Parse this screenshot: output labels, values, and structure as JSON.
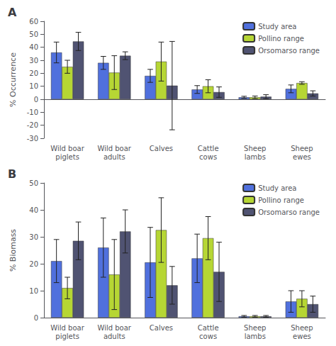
{
  "chart_data": [
    {
      "type": "bar",
      "title": "A",
      "ylabel": "% Occurrence",
      "categories": [
        "Wild boar\npiglets",
        "Wild boar\nadults",
        "Calves",
        "Cattle\ncows",
        "Sheep\nlambs",
        "Sheep\newes"
      ],
      "series": [
        {
          "name": "Study area",
          "values": [
            36,
            28,
            18,
            7.5,
            1.5,
            8
          ],
          "errors": [
            8,
            5,
            5,
            3,
            0.8,
            3
          ]
        },
        {
          "name": "Pollino range",
          "values": [
            25,
            20.5,
            29,
            10,
            1.5,
            12.5
          ],
          "errors": [
            5,
            13,
            15,
            5,
            1,
            1
          ]
        },
        {
          "name": "Orsomarso range",
          "values": [
            44.5,
            33.5,
            10.5,
            5.5,
            2,
            4.5
          ],
          "errors": [
            7,
            3,
            34,
            4,
            1.5,
            2
          ]
        }
      ],
      "ylim": [
        -30,
        60
      ],
      "yticks": [
        -30,
        -20,
        -10,
        0,
        10,
        20,
        30,
        40,
        50,
        60
      ],
      "grid": false,
      "legend": "upper right"
    },
    {
      "type": "bar",
      "title": "B",
      "ylabel": "% Biomass",
      "categories": [
        "Wild boar\npiglets",
        "Wild boar\nadults",
        "Calves",
        "Cattle\ncows",
        "Sheep\nlambs",
        "Sheep\newes"
      ],
      "series": [
        {
          "name": "Study area",
          "values": [
            21,
            26,
            20.5,
            22,
            0.5,
            6
          ],
          "errors": [
            8,
            11,
            13,
            9,
            0.3,
            4
          ]
        },
        {
          "name": "Pollino range",
          "values": [
            11,
            16,
            32.5,
            29.5,
            0.5,
            7
          ],
          "errors": [
            4,
            13,
            12,
            8,
            0.3,
            3
          ]
        },
        {
          "name": "Orsomarso range",
          "values": [
            28.5,
            32,
            12,
            17,
            0.5,
            5
          ],
          "errors": [
            7,
            8,
            7,
            11,
            0.3,
            3
          ]
        }
      ],
      "ylim": [
        0,
        50
      ],
      "yticks": [
        0,
        10,
        20,
        30,
        40,
        50
      ],
      "grid": false,
      "legend": "upper right"
    }
  ]
}
